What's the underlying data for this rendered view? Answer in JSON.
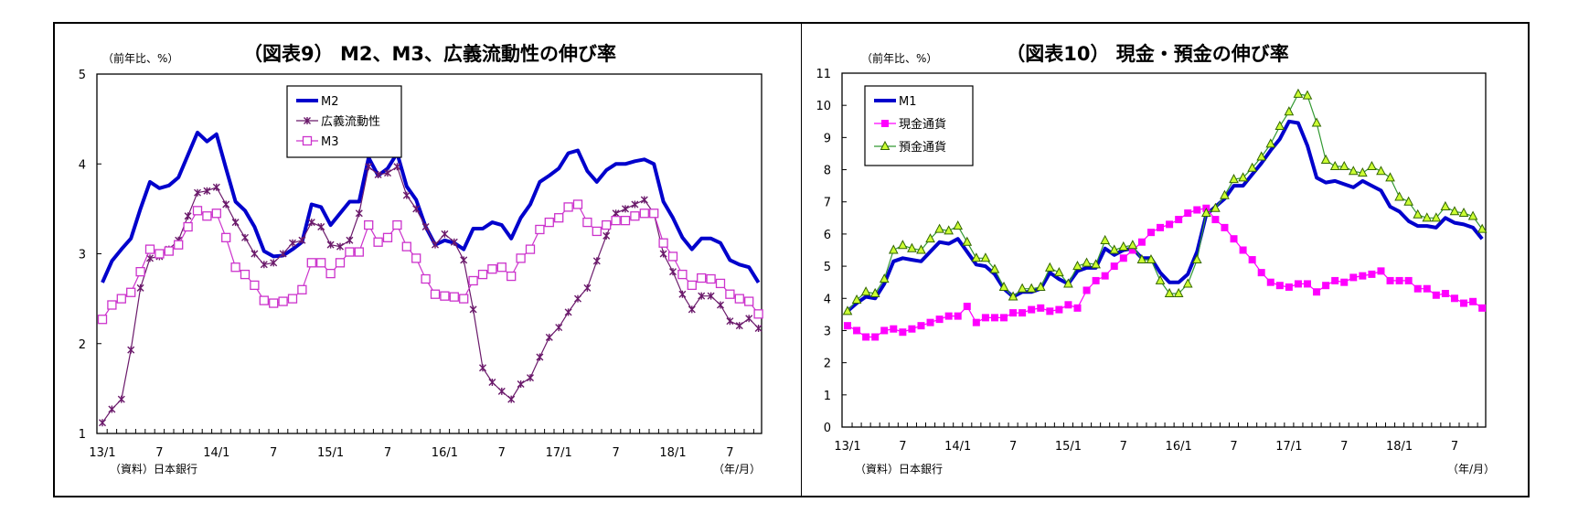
{
  "chart_data": [
    {
      "type": "line",
      "title": "（図表9） M2、M3、広義流動性の伸び率",
      "ylabel": "（前年比、%）",
      "xlabel": "（年/月）",
      "source": "（資料）日本銀行",
      "ylim": [
        1,
        5
      ],
      "yticks": [
        "1",
        "2",
        "3",
        "4",
        "5"
      ],
      "x_start": "13/1",
      "x_tick_labels": [
        "13/1",
        "7",
        "14/1",
        "7",
        "15/1",
        "7",
        "16/1",
        "7",
        "17/1",
        "7",
        "18/1",
        "7"
      ],
      "grid": false,
      "legend_position": "top-center",
      "series": [
        {
          "name": "M2",
          "color": "#0000cc",
          "marker": "none",
          "values": [
            2.68,
            2.92,
            3.05,
            3.17,
            3.5,
            3.8,
            3.73,
            3.76,
            3.85,
            4.1,
            4.35,
            4.25,
            4.33,
            3.95,
            3.58,
            3.48,
            3.3,
            3.03,
            2.97,
            2.98,
            3.05,
            3.13,
            3.55,
            3.52,
            3.32,
            3.45,
            3.58,
            3.58,
            4.07,
            3.87,
            3.95,
            4.12,
            3.75,
            3.6,
            3.3,
            3.1,
            3.15,
            3.12,
            3.05,
            3.28,
            3.28,
            3.35,
            3.32,
            3.17,
            3.4,
            3.55,
            3.8,
            3.87,
            3.95,
            4.12,
            4.15,
            3.92,
            3.8,
            3.93,
            4.0,
            4.0,
            4.03,
            4.05,
            4.0,
            3.58,
            3.4,
            3.18,
            3.05,
            3.17,
            3.17,
            3.12,
            2.93,
            2.88,
            2.85,
            2.68
          ]
        },
        {
          "name": "広義流動性",
          "color": "#6b1a6b",
          "marker": "star",
          "values": [
            1.12,
            1.27,
            1.38,
            1.93,
            2.62,
            2.95,
            2.97,
            3.05,
            3.15,
            3.42,
            3.68,
            3.7,
            3.74,
            3.55,
            3.35,
            3.18,
            3.0,
            2.88,
            2.9,
            3.0,
            3.12,
            3.15,
            3.35,
            3.3,
            3.1,
            3.08,
            3.15,
            3.45,
            3.97,
            3.88,
            3.9,
            3.97,
            3.65,
            3.5,
            3.3,
            3.1,
            3.22,
            3.13,
            2.93,
            2.38,
            1.73,
            1.57,
            1.47,
            1.38,
            1.55,
            1.62,
            1.85,
            2.07,
            2.18,
            2.35,
            2.5,
            2.62,
            2.92,
            3.2,
            3.45,
            3.5,
            3.55,
            3.6,
            3.45,
            3.0,
            2.8,
            2.55,
            2.38,
            2.53,
            2.53,
            2.43,
            2.25,
            2.2,
            2.28,
            2.17
          ]
        },
        {
          "name": "M3",
          "color": "#cc33cc",
          "marker": "open-square",
          "values": [
            2.27,
            2.43,
            2.5,
            2.57,
            2.8,
            3.05,
            3.0,
            3.03,
            3.1,
            3.3,
            3.48,
            3.42,
            3.45,
            3.18,
            2.85,
            2.77,
            2.65,
            2.48,
            2.45,
            2.47,
            2.5,
            2.6,
            2.9,
            2.9,
            2.78,
            2.9,
            3.02,
            3.02,
            3.32,
            3.13,
            3.18,
            3.32,
            3.08,
            2.95,
            2.72,
            2.55,
            2.53,
            2.52,
            2.5,
            2.7,
            2.77,
            2.83,
            2.85,
            2.75,
            2.95,
            3.05,
            3.27,
            3.35,
            3.4,
            3.52,
            3.55,
            3.35,
            3.25,
            3.32,
            3.37,
            3.37,
            3.42,
            3.45,
            3.45,
            3.12,
            2.97,
            2.77,
            2.65,
            2.73,
            2.72,
            2.67,
            2.55,
            2.5,
            2.47,
            2.33
          ]
        }
      ]
    },
    {
      "type": "line",
      "title": "（図表10） 現金・預金の伸び率",
      "ylabel": "（前年比、%）",
      "xlabel": "（年/月）",
      "source": "（資料）日本銀行",
      "ylim": [
        0,
        11
      ],
      "yticks": [
        "0",
        "1",
        "2",
        "3",
        "4",
        "5",
        "6",
        "7",
        "8",
        "9",
        "10",
        "11"
      ],
      "x_start": "13/1",
      "x_tick_labels": [
        "13/1",
        "7",
        "14/1",
        "7",
        "15/1",
        "7",
        "16/1",
        "7",
        "17/1",
        "7",
        "18/1",
        "7"
      ],
      "grid": false,
      "legend_position": "top-left",
      "series": [
        {
          "name": "M1",
          "color": "#0000cc",
          "marker": "none",
          "values": [
            3.6,
            3.85,
            4.05,
            4.0,
            4.45,
            5.15,
            5.25,
            5.2,
            5.15,
            5.45,
            5.75,
            5.7,
            5.85,
            5.45,
            5.05,
            5.0,
            4.75,
            4.3,
            4.05,
            4.2,
            4.2,
            4.3,
            4.8,
            4.6,
            4.45,
            4.85,
            4.95,
            4.95,
            5.55,
            5.35,
            5.5,
            5.55,
            5.25,
            5.25,
            4.8,
            4.5,
            4.5,
            4.75,
            5.45,
            6.6,
            6.85,
            7.1,
            7.5,
            7.5,
            7.85,
            8.2,
            8.6,
            8.95,
            9.5,
            9.45,
            8.75,
            7.75,
            7.6,
            7.65,
            7.55,
            7.45,
            7.65,
            7.5,
            7.35,
            6.85,
            6.7,
            6.4,
            6.25,
            6.25,
            6.2,
            6.5,
            6.35,
            6.3,
            6.2,
            5.85
          ]
        },
        {
          "name": "現金通貨",
          "color": "#ff00ff",
          "marker": "filled-square",
          "values": [
            3.15,
            3.0,
            2.8,
            2.8,
            3.0,
            3.05,
            2.95,
            3.05,
            3.15,
            3.25,
            3.35,
            3.45,
            3.45,
            3.75,
            3.25,
            3.4,
            3.4,
            3.4,
            3.55,
            3.55,
            3.65,
            3.7,
            3.6,
            3.65,
            3.8,
            3.7,
            4.25,
            4.55,
            4.7,
            5.0,
            5.25,
            5.5,
            5.75,
            6.05,
            6.2,
            6.3,
            6.45,
            6.65,
            6.75,
            6.8,
            6.45,
            6.2,
            5.85,
            5.5,
            5.2,
            4.8,
            4.5,
            4.4,
            4.35,
            4.45,
            4.45,
            4.2,
            4.4,
            4.55,
            4.5,
            4.65,
            4.7,
            4.75,
            4.85,
            4.55,
            4.55,
            4.55,
            4.3,
            4.3,
            4.1,
            4.15,
            4.0,
            3.85,
            3.9,
            3.7
          ]
        },
        {
          "name": "預金通貨",
          "color": "#339933",
          "marker": "triangle",
          "values": [
            3.6,
            3.95,
            4.2,
            4.15,
            4.6,
            5.5,
            5.65,
            5.55,
            5.5,
            5.85,
            6.15,
            6.1,
            6.25,
            5.75,
            5.25,
            5.25,
            4.9,
            4.35,
            4.05,
            4.3,
            4.3,
            4.35,
            4.95,
            4.8,
            4.45,
            5.0,
            5.1,
            5.05,
            5.8,
            5.5,
            5.6,
            5.65,
            5.2,
            5.2,
            4.55,
            4.15,
            4.15,
            4.45,
            5.2,
            6.65,
            6.8,
            7.2,
            7.7,
            7.75,
            8.05,
            8.4,
            8.8,
            9.35,
            9.8,
            10.35,
            10.3,
            9.45,
            8.3,
            8.1,
            8.1,
            7.95,
            7.9,
            8.1,
            7.95,
            7.75,
            7.15,
            7.0,
            6.6,
            6.5,
            6.5,
            6.85,
            6.7,
            6.65,
            6.55,
            6.15
          ]
        }
      ]
    }
  ]
}
